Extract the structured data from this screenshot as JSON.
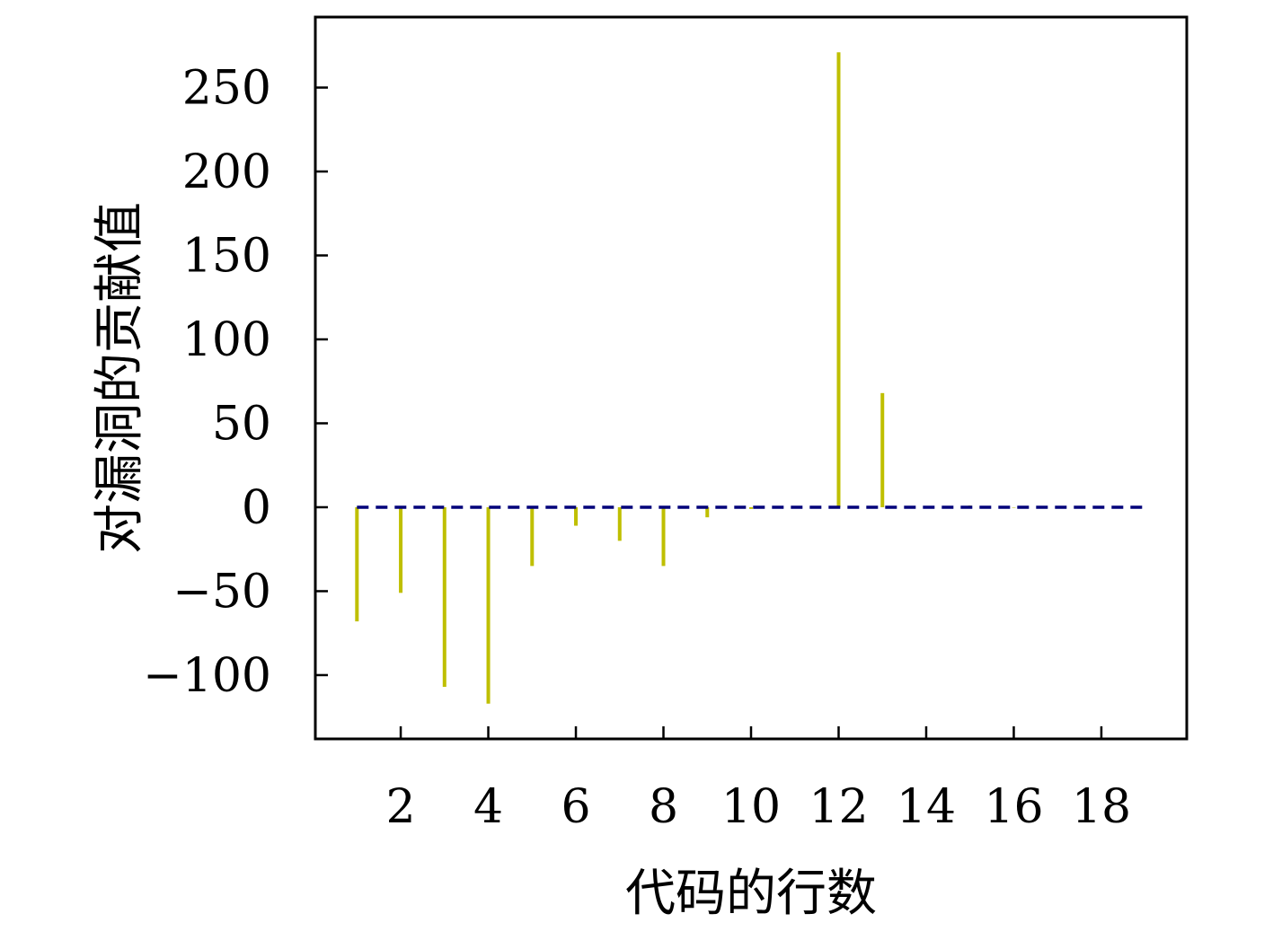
{
  "chart_data": {
    "type": "bar",
    "xlabel": "代码的行数",
    "ylabel": "对漏洞的贡献值",
    "x": [
      1,
      2,
      3,
      4,
      5,
      6,
      7,
      8,
      9,
      10,
      11,
      12,
      13,
      14,
      15,
      16,
      17,
      18
    ],
    "values": [
      -68,
      -51,
      -107,
      -117,
      -35,
      -11,
      -20,
      -35,
      -6,
      -1,
      0,
      271,
      68,
      0,
      1,
      0,
      0,
      0
    ],
    "xlim": [
      0.05,
      19.95
    ],
    "ylim": [
      -138,
      292
    ],
    "xticks": [
      2,
      4,
      6,
      8,
      10,
      12,
      14,
      16,
      18
    ],
    "yticks": [
      -100,
      -50,
      0,
      50,
      100,
      150,
      200,
      250
    ],
    "ytick_labels": [
      "−100",
      "−50",
      "0",
      "50",
      "100",
      "150",
      "200",
      "250"
    ],
    "baseline": {
      "y": 0,
      "x_range": [
        1,
        19
      ],
      "style": "dashed"
    },
    "grid": false,
    "colors": {
      "bars": "#bfbf00",
      "baseline": "#00007a",
      "axes": "#000000"
    }
  }
}
